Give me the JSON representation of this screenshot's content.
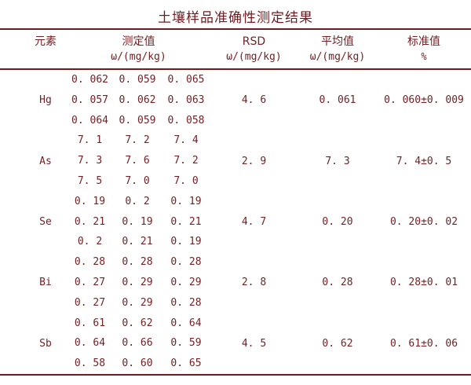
{
  "title": "土壤样品准确性测定结果",
  "colors": {
    "accent_text": "#722125",
    "rule": "#701d21",
    "background": "#ffffff"
  },
  "header": {
    "element": "元素",
    "measured_label": "测定值",
    "measured_unit": "ω/(mg/kg)",
    "rsd_label": "RSD",
    "rsd_unit": "ω/(mg/kg)",
    "average_label": "平均值",
    "average_unit": "ω/(mg/kg)",
    "standard_label": "标准值",
    "standard_unit": "%"
  },
  "rows": [
    {
      "element": "Hg",
      "measured": [
        [
          "0. 062",
          "0. 059",
          "0. 065"
        ],
        [
          "0. 057",
          "0. 062",
          "0. 063"
        ],
        [
          "0. 064",
          "0. 059",
          "0. 058"
        ]
      ],
      "rsd": "4. 6",
      "avg": "0. 061",
      "std": "0. 060±0. 009"
    },
    {
      "element": "As",
      "measured": [
        [
          "7. 1",
          "7. 2",
          "7. 4"
        ],
        [
          "7. 3",
          "7. 6",
          "7. 2"
        ],
        [
          "7. 5",
          "7. 0",
          "7. 0"
        ]
      ],
      "rsd": "2. 9",
      "avg": "7. 3",
      "std": "7. 4±0. 5"
    },
    {
      "element": "Se",
      "measured": [
        [
          "0. 19",
          "0. 2",
          "0. 19"
        ],
        [
          "0. 21",
          "0. 19",
          "0. 21"
        ],
        [
          "0. 2",
          "0. 21",
          "0. 19"
        ]
      ],
      "rsd": "4. 7",
      "avg": "0. 20",
      "std": "0. 20±0. 02"
    },
    {
      "element": "Bi",
      "measured": [
        [
          "0. 28",
          "0. 28",
          "0. 28"
        ],
        [
          "0. 27",
          "0. 29",
          "0. 29"
        ],
        [
          "0. 27",
          "0. 29",
          "0. 28"
        ]
      ],
      "rsd": "2. 8",
      "avg": "0. 28",
      "std": "0. 28±0. 01"
    },
    {
      "element": "Sb",
      "measured": [
        [
          "0. 61",
          "0. 62",
          "0. 64"
        ],
        [
          "0. 64",
          "0. 66",
          "0. 59"
        ],
        [
          "0. 58",
          "0. 60",
          "0. 65"
        ]
      ],
      "rsd": "4. 5",
      "avg": "0. 62",
      "std": "0. 61±0. 06"
    }
  ],
  "chart_data": {
    "type": "table",
    "title": "土壤样品准确性测定结果",
    "columns": [
      "元素",
      "测定值 ω/(mg/kg)",
      "RSD ω/(mg/kg)",
      "平均值 ω/(mg/kg)",
      "标准值 %"
    ],
    "elements": [
      "Hg",
      "As",
      "Se",
      "Bi",
      "Sb"
    ],
    "measured_values": {
      "Hg": [
        0.062,
        0.059,
        0.065,
        0.057,
        0.062,
        0.063,
        0.064,
        0.059,
        0.058
      ],
      "As": [
        7.1,
        7.2,
        7.4,
        7.3,
        7.6,
        7.2,
        7.5,
        7.0,
        7.0
      ],
      "Se": [
        0.19,
        0.2,
        0.19,
        0.21,
        0.19,
        0.21,
        0.2,
        0.21,
        0.19
      ],
      "Bi": [
        0.28,
        0.28,
        0.28,
        0.27,
        0.29,
        0.29,
        0.27,
        0.29,
        0.28
      ],
      "Sb": [
        0.61,
        0.62,
        0.64,
        0.64,
        0.66,
        0.59,
        0.58,
        0.6,
        0.65
      ]
    },
    "rsd": [
      4.6,
      2.9,
      4.7,
      2.8,
      4.5
    ],
    "average": [
      0.061,
      7.3,
      0.2,
      0.28,
      0.62
    ],
    "standard": [
      "0.060±0.009",
      "7.4±0.5",
      "0.20±0.02",
      "0.28±0.01",
      "0.61±0.06"
    ]
  }
}
